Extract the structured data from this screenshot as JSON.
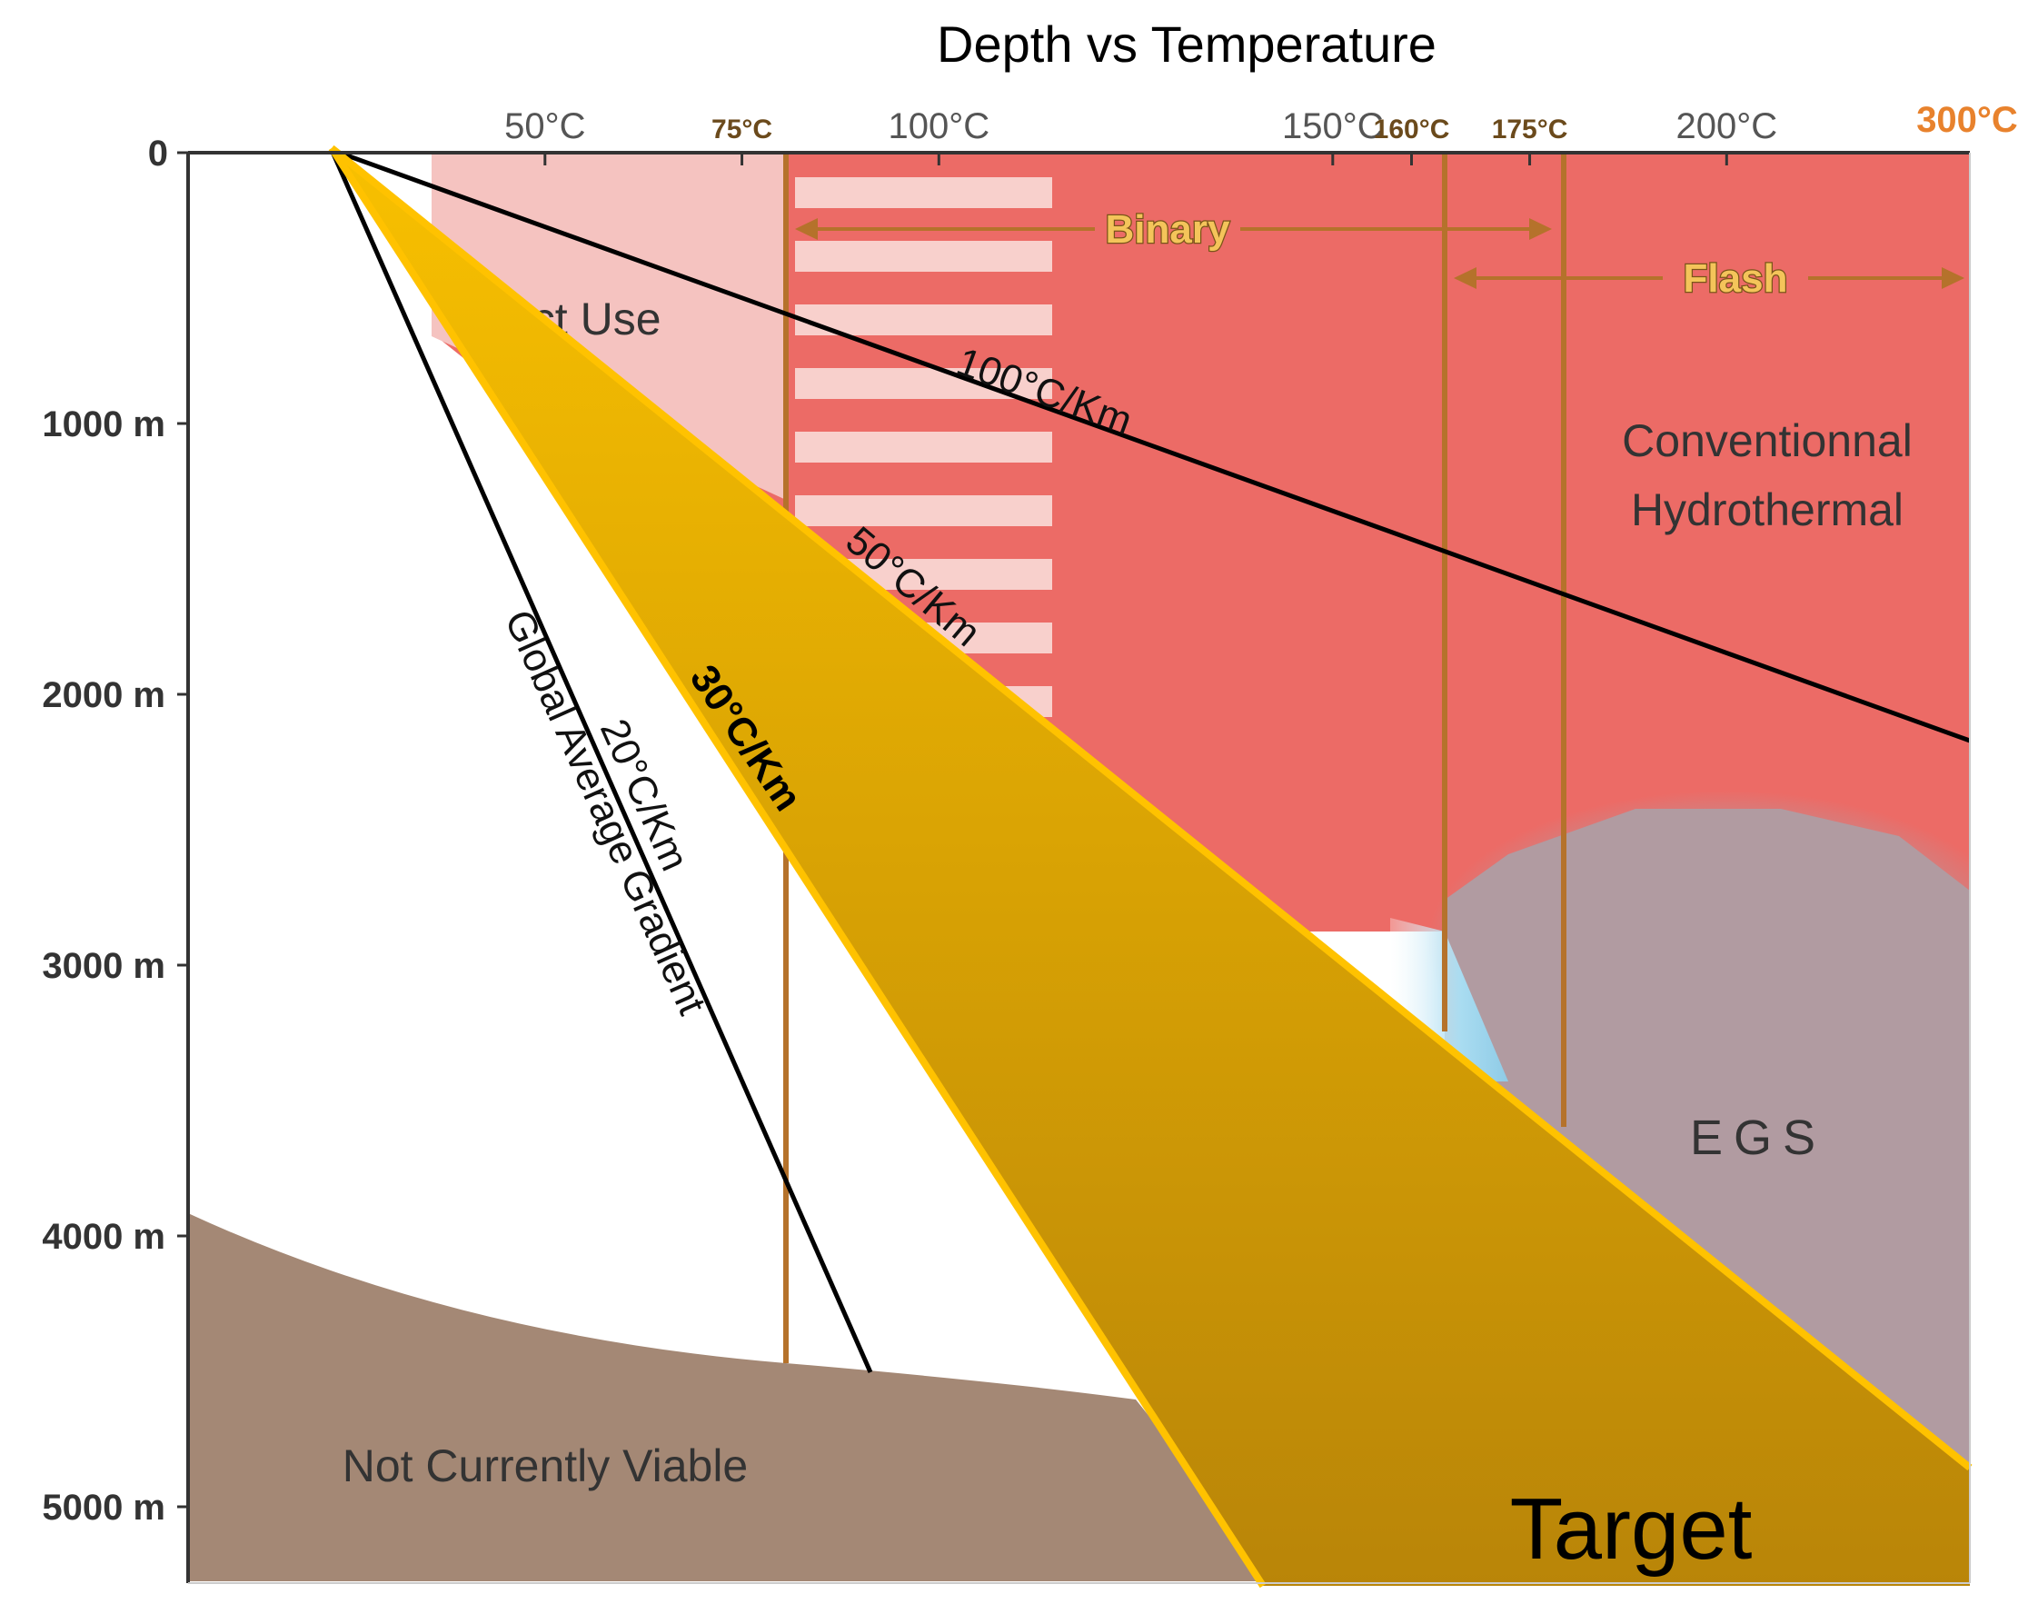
{
  "colors": {
    "direct_use_fill": "#f5c3c0",
    "hydrothermal_fill": "#ec6b66",
    "binary_stripe": "#f8d0cc",
    "egs_fill": "#b19ba1",
    "egs_blend_blue": "#a9dcf1",
    "not_viable_fill": "#a48875",
    "target_fill_top": "#f8c000",
    "target_fill_bottom": "#b98508",
    "target_edge": "#ffc200",
    "boundary_line": "#b5722b",
    "gradient_line": "#000000",
    "hot_tick": "#e8822d"
  },
  "chart_data": {
    "type": "area",
    "title": "Depth vs Temperature",
    "x_axis": {
      "position": "top",
      "ticks": [
        {
          "value": 50,
          "label": "50°C",
          "style": "normal"
        },
        {
          "value": 75,
          "label": "75°C",
          "style": "special"
        },
        {
          "value": 100,
          "label": "100°C",
          "style": "normal"
        },
        {
          "value": 150,
          "label": "150°C",
          "style": "normal"
        },
        {
          "value": 160,
          "label": "160°C",
          "style": "special"
        },
        {
          "value": 175,
          "label": "175°C",
          "style": "special"
        },
        {
          "value": 200,
          "label": "200°C",
          "style": "normal"
        },
        {
          "value": 300,
          "label": "300°C",
          "style": "hot"
        }
      ]
    },
    "y_axis": {
      "inverted": true,
      "range": [
        0,
        5300
      ],
      "ticks": [
        {
          "value": 0,
          "label": "0"
        },
        {
          "value": 1000,
          "label": "1000 m"
        },
        {
          "value": 2000,
          "label": "2000 m"
        },
        {
          "value": 3000,
          "label": "3000 m"
        },
        {
          "value": 4000,
          "label": "4000 m"
        },
        {
          "value": 5000,
          "label": "5000 m"
        }
      ]
    },
    "regions": [
      {
        "name": "Direct Use",
        "label": "ect Use"
      },
      {
        "name": "Conventional Hydrothermal",
        "label_lines": [
          "Conventionnal",
          "Hydrothermal"
        ]
      },
      {
        "name": "EGS",
        "label": "EGS"
      },
      {
        "name": "Not Currently Viable",
        "label": "Not  Currently Viable"
      }
    ],
    "technology_ranges": [
      {
        "name": "Binary",
        "from_c": 75,
        "to_c": 175
      },
      {
        "name": "Flash",
        "from_c": 160,
        "to_c": 300
      }
    ],
    "boundaries_c": [
      75,
      160,
      175
    ],
    "gradients": [
      {
        "rate_c_per_km": 100,
        "label": "100°C/Km"
      },
      {
        "rate_c_per_km": 50,
        "label": "50°C/Km"
      },
      {
        "rate_c_per_km": 30,
        "label": "30°C/Km"
      },
      {
        "rate_c_per_km": 20,
        "label_lines": [
          "20°C/Km",
          "Global Average Gradient"
        ]
      }
    ],
    "target": {
      "label": "Target"
    }
  }
}
